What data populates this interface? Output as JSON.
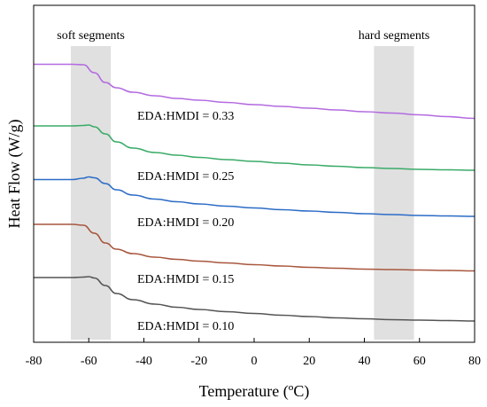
{
  "chart_data": {
    "type": "line",
    "title": "",
    "xlabel": "Temperature (ºC)",
    "ylabel": "Heat Flow (W/g)",
    "xlim": [
      -80,
      80
    ],
    "xticks": [
      -80,
      -60,
      -40,
      -20,
      0,
      20,
      40,
      60,
      80
    ],
    "y_ticks_shown": false,
    "grid": false,
    "legend": "none",
    "regions": [
      {
        "label": "soft segments",
        "x_range": [
          -66.5,
          -52
        ],
        "color": "#e0e0e0"
      },
      {
        "label": "hard segments",
        "x_range": [
          43.5,
          58
        ],
        "color": "#e0e0e0"
      }
    ],
    "series": [
      {
        "name": "EDA:HMDI = 0.33",
        "color": "#b36be0",
        "x": [
          -80,
          -66,
          -62,
          -58,
          -54,
          -50,
          -44,
          -36,
          -28,
          -20,
          -10,
          0,
          10,
          20,
          30,
          40,
          50,
          60,
          70,
          80
        ],
        "y": [
          72.5,
          72.5,
          73,
          82,
          93,
          99,
          104,
          108,
          111,
          113,
          115.5,
          118,
          120,
          122,
          124,
          126,
          127.5,
          129.5,
          131.5,
          133.5
        ]
      },
      {
        "name": "EDA:HMDI = 0.25",
        "color": "#3aab68",
        "x": [
          -80,
          -66,
          -62,
          -60,
          -58,
          -54,
          -50,
          -44,
          -36,
          -28,
          -20,
          -10,
          0,
          10,
          20,
          30,
          40,
          50,
          60,
          70,
          80
        ],
        "y": [
          142,
          142,
          141.5,
          141,
          143,
          151,
          160,
          167,
          172,
          175,
          177.5,
          180,
          182,
          184,
          186,
          187.5,
          189,
          190,
          191,
          191.5,
          192
        ]
      },
      {
        "name": "EDA:HMDI = 0.20",
        "color": "#2c6cc6",
        "x": [
          -80,
          -66,
          -62,
          -60,
          -58,
          -54,
          -50,
          -44,
          -36,
          -28,
          -20,
          -10,
          0,
          10,
          20,
          30,
          40,
          50,
          60,
          70,
          80
        ],
        "y": [
          202.5,
          202.5,
          201,
          199.5,
          200.5,
          207,
          214,
          220,
          224.5,
          227.5,
          230,
          232.5,
          234.5,
          236.5,
          238,
          239.5,
          241,
          242,
          243,
          243.5,
          244
        ]
      },
      {
        "name": "EDA:HMDI = 0.15",
        "color": "#a8573e",
        "x": [
          -80,
          -66,
          -62,
          -58,
          -54,
          -50,
          -44,
          -36,
          -28,
          -20,
          -10,
          0,
          10,
          20,
          30,
          40,
          50,
          60,
          70,
          80
        ],
        "y": [
          253,
          253,
          254,
          263,
          274,
          281,
          286,
          290,
          292.5,
          294.5,
          296.5,
          298.5,
          300,
          301.5,
          302.5,
          303.5,
          304,
          304.5,
          305,
          305.5
        ]
      },
      {
        "name": "EDA:HMDI = 0.10",
        "color": "#555555",
        "x": [
          -80,
          -66,
          -62,
          -60,
          -58,
          -54,
          -50,
          -44,
          -36,
          -28,
          -20,
          -10,
          0,
          10,
          20,
          30,
          40,
          50,
          60,
          70,
          80
        ],
        "y": [
          313,
          313,
          312.5,
          312,
          313.5,
          322,
          331,
          338,
          343,
          346.5,
          349,
          351.5,
          353.5,
          355.5,
          357,
          358.5,
          359.5,
          360.5,
          361,
          361.5,
          362
        ]
      }
    ]
  }
}
